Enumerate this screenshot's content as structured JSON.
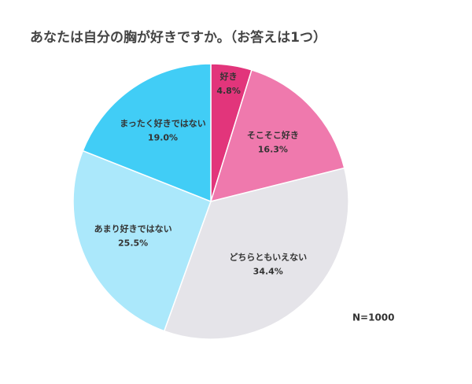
{
  "chart_data": {
    "type": "pie",
    "title": "あなたは自分の胸が好きですか。（お答えは1つ）",
    "categories": [
      "好き",
      "そこそこ好き",
      "どちらともいえない",
      "あまり好きではない",
      "まったく好きではない"
    ],
    "values": [
      4.8,
      16.3,
      34.4,
      25.5,
      19.0
    ],
    "value_labels": [
      "4.8%",
      "16.3%",
      "34.4%",
      "25.5%",
      "19.0%"
    ],
    "colors": [
      "#e2357b",
      "#ef79ad",
      "#e5e4e9",
      "#abe8fb",
      "#41cdf6"
    ],
    "annotation": "N=1000"
  }
}
